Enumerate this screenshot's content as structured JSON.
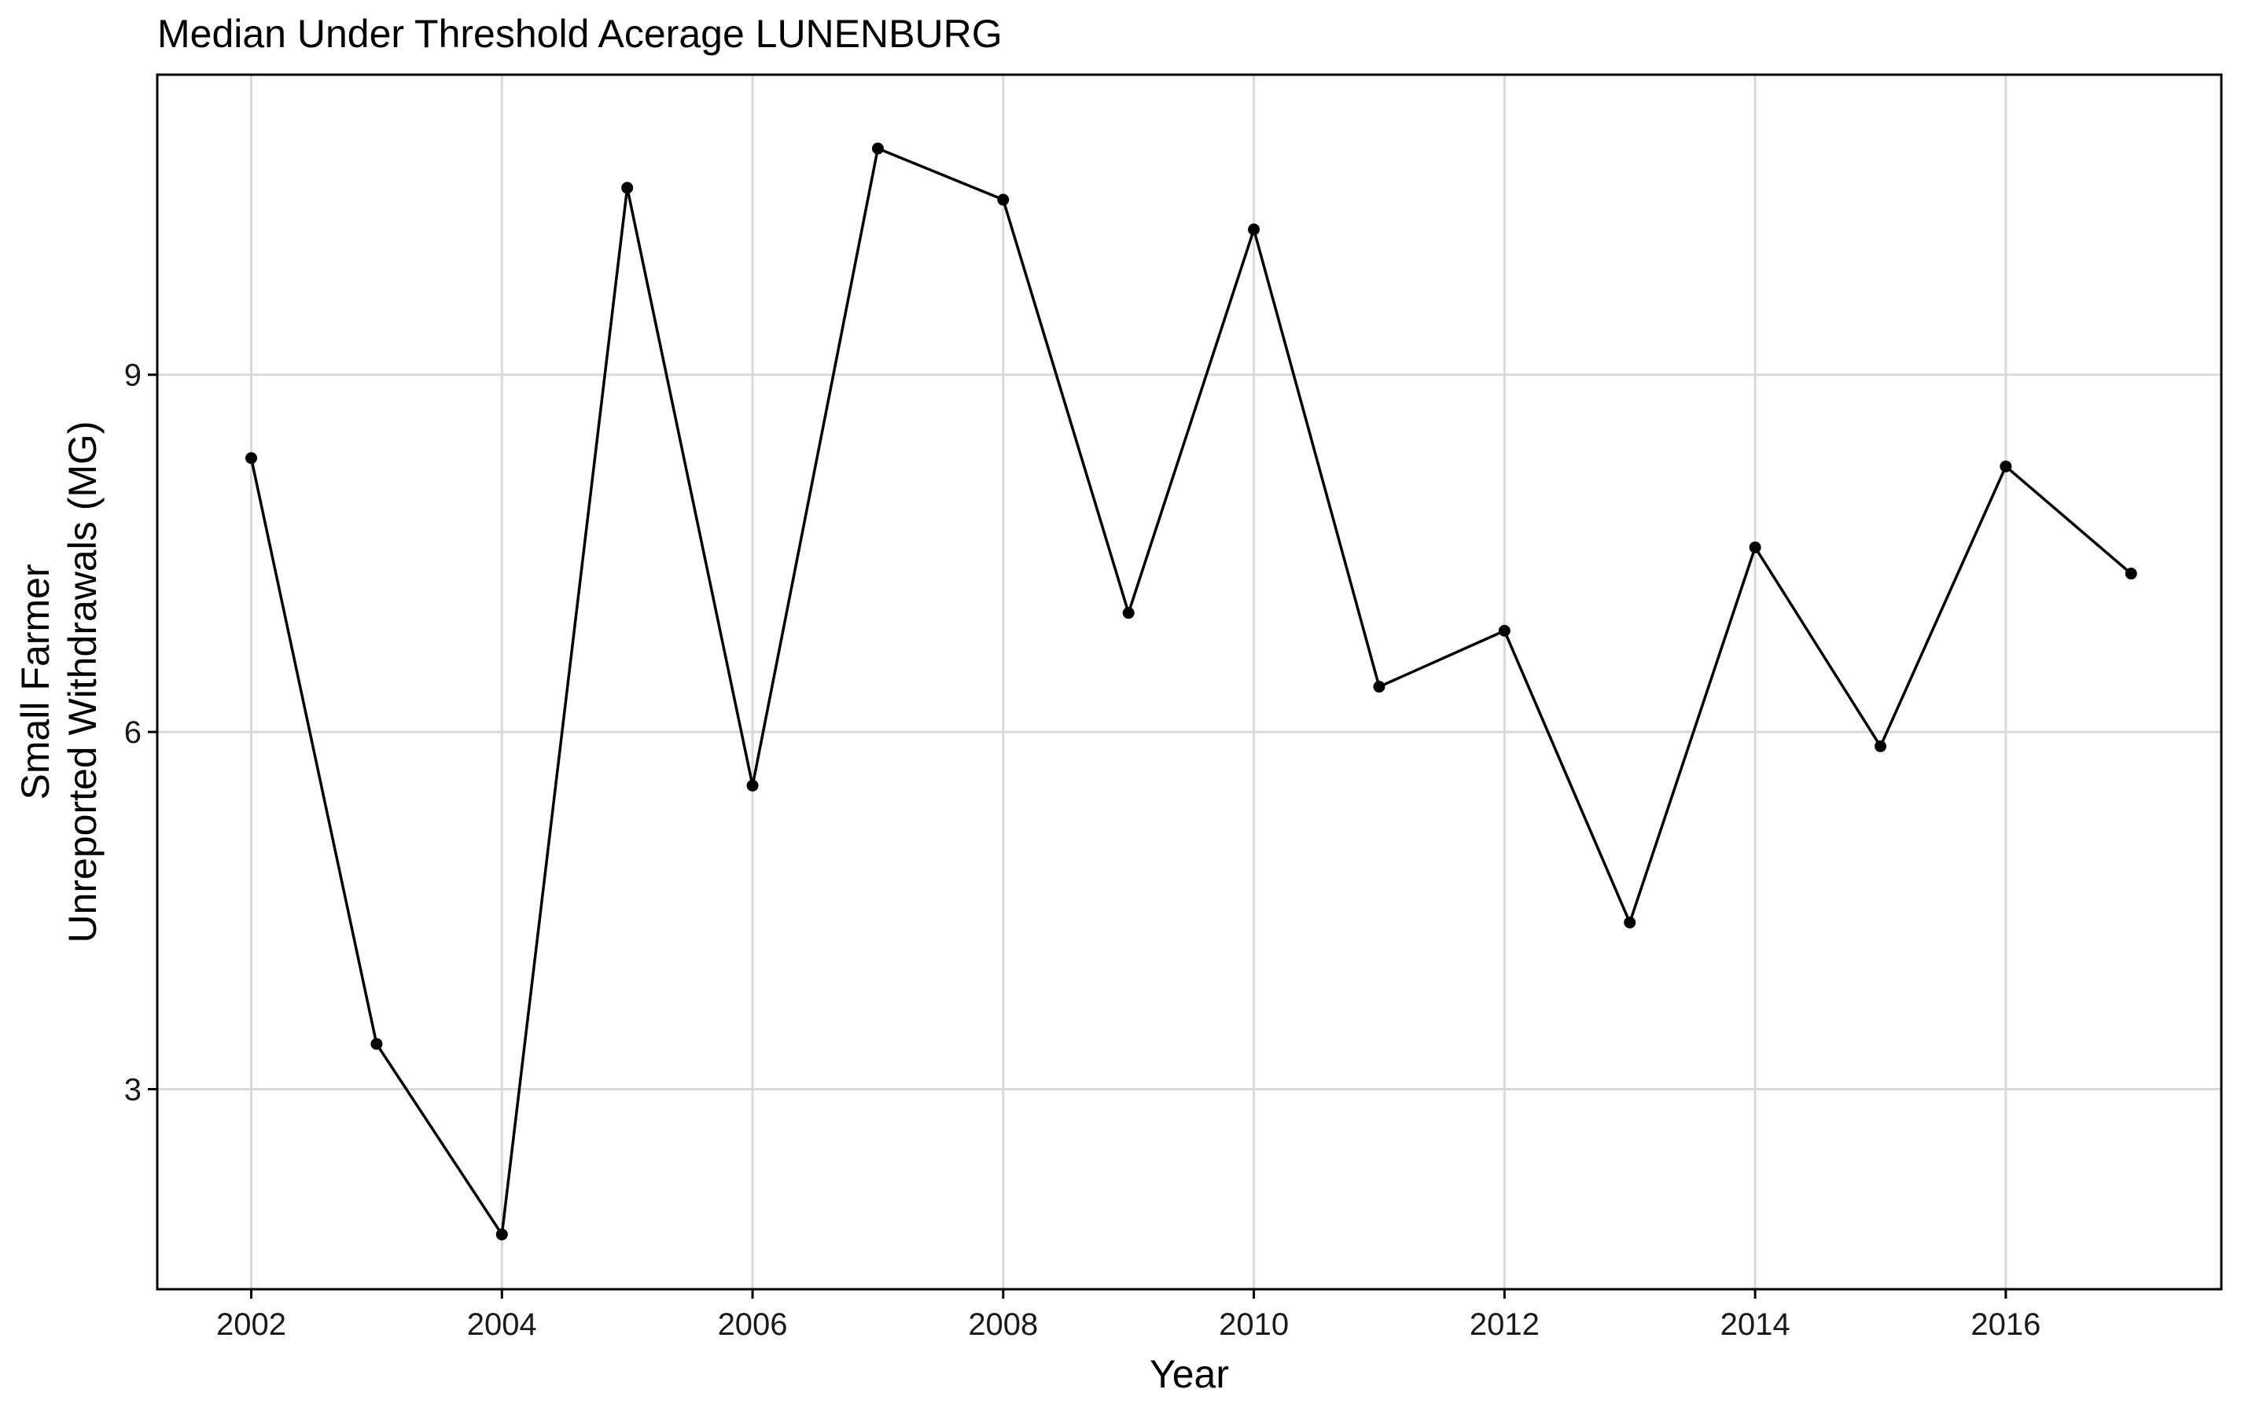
{
  "chart_data": {
    "type": "line",
    "title": "Median Under Threshold Acerage LUNENBURG",
    "xlabel": "Year",
    "ylabel_lines": [
      "Small Farmer",
      "Unreported Withdrawals (MG)"
    ],
    "x": [
      2002,
      2003,
      2004,
      2005,
      2006,
      2007,
      2008,
      2009,
      2010,
      2011,
      2012,
      2013,
      2014,
      2015,
      2016,
      2017
    ],
    "series": [
      {
        "values": [
          8.3,
          3.38,
          1.78,
          10.57,
          5.55,
          10.9,
          10.47,
          7.0,
          10.22,
          6.38,
          6.85,
          4.4,
          7.55,
          5.88,
          8.23,
          7.33
        ]
      }
    ],
    "xlim": [
      2001.25,
      2017.72
    ],
    "ylim": [
      1.32,
      11.52
    ],
    "x_ticks": [
      2002,
      2004,
      2006,
      2008,
      2010,
      2012,
      2014,
      2016
    ],
    "y_ticks": [
      3,
      6,
      9
    ],
    "grid": true,
    "legend": "none",
    "line_color": "#000000",
    "grid_color": "#d9d9d9"
  }
}
